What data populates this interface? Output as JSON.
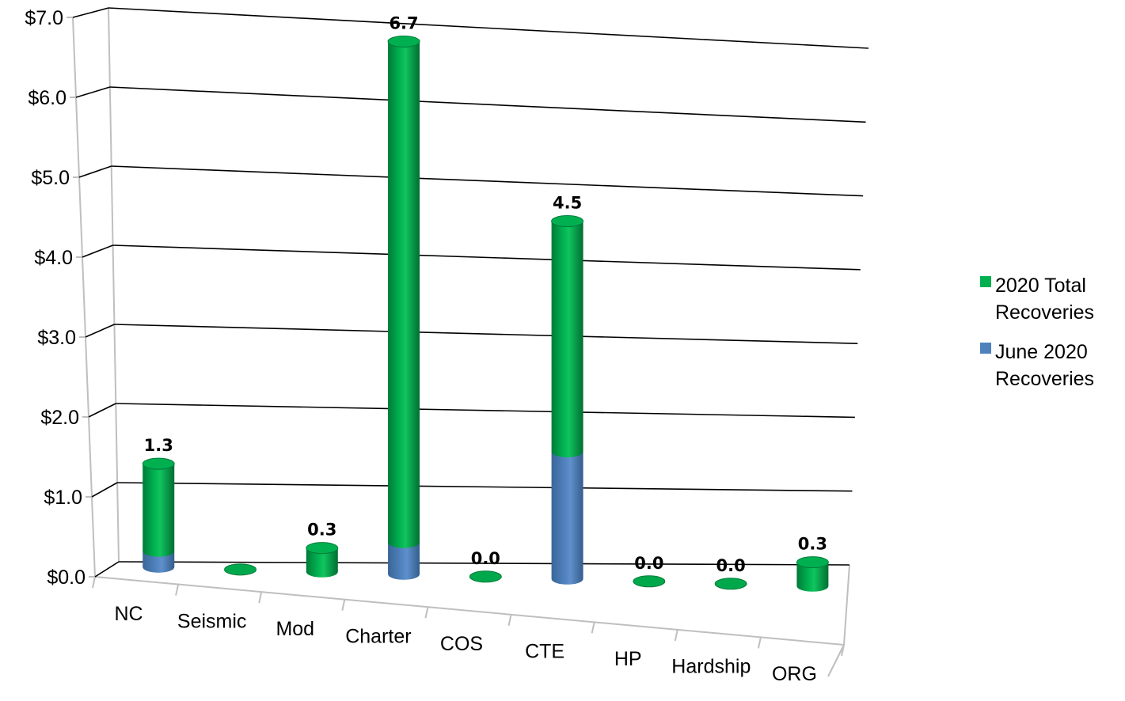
{
  "chart_data": {
    "type": "bar",
    "style": "3d-cylinder-stacked",
    "categories": [
      "NC",
      "Seismic",
      "Mod",
      "Charter",
      "COS",
      "CTE",
      "HP",
      "Hardship",
      "ORG"
    ],
    "series": [
      {
        "name": "June 2020 Recoveries",
        "color": "#4f81bd",
        "values": [
          0.2,
          0.0,
          0.0,
          0.4,
          0.0,
          1.6,
          0.0,
          0.0,
          0.0
        ]
      },
      {
        "name": "2020 Total Recoveries",
        "color": "#00b050",
        "values": [
          1.3,
          0.0,
          0.3,
          6.7,
          0.0,
          4.5,
          0.0,
          0.0,
          0.3
        ]
      }
    ],
    "data_labels": [
      "1.3",
      "",
      "0.3",
      "6.7",
      "0.0",
      "4.5",
      "0.0",
      "0.0",
      "0.3"
    ],
    "y_ticks": [
      "$0.0",
      "$1.0",
      "$2.0",
      "$3.0",
      "$4.0",
      "$5.0",
      "$6.0",
      "$7.0"
    ],
    "ylim": [
      0,
      7
    ],
    "grid": true,
    "legend_position": "right",
    "title": "",
    "xlabel": "",
    "ylabel": ""
  },
  "legend": {
    "items": [
      {
        "line1": "2020 Total",
        "line2": "Recoveries",
        "color": "#00b050"
      },
      {
        "line1": "June 2020",
        "line2": "Recoveries",
        "color": "#4f81bd"
      }
    ]
  }
}
